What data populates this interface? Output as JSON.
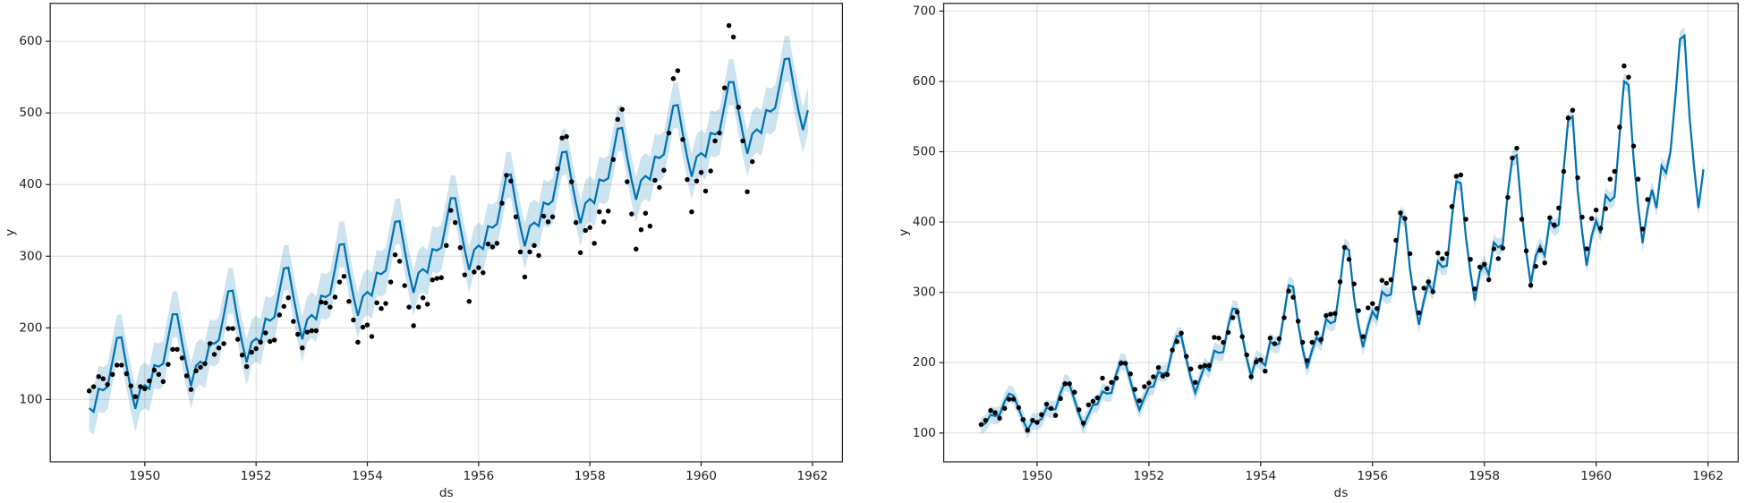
{
  "chart_data": [
    {
      "type": "line",
      "x_label": "ds",
      "y_label": "y",
      "grid": true,
      "xlim": [
        1948.3,
        1962.54
      ],
      "ylim": [
        13,
        653
      ],
      "xticks": [
        1950,
        1952,
        1954,
        1956,
        1958,
        1960,
        1962
      ],
      "yticks": [
        100,
        200,
        300,
        400,
        500,
        600
      ],
      "x": [
        1949.0,
        1949.08,
        1949.17,
        1949.25,
        1949.33,
        1949.42,
        1949.5,
        1949.58,
        1949.67,
        1949.75,
        1949.83,
        1949.92,
        1950.0,
        1950.08,
        1950.17,
        1950.25,
        1950.33,
        1950.42,
        1950.5,
        1950.58,
        1950.67,
        1950.75,
        1950.83,
        1950.92,
        1951.0,
        1951.08,
        1951.17,
        1951.25,
        1951.33,
        1951.42,
        1951.5,
        1951.58,
        1951.67,
        1951.75,
        1951.83,
        1951.92,
        1952.0,
        1952.08,
        1952.17,
        1952.25,
        1952.33,
        1952.42,
        1952.5,
        1952.58,
        1952.67,
        1952.75,
        1952.83,
        1952.92,
        1953.0,
        1953.08,
        1953.17,
        1953.25,
        1953.33,
        1953.42,
        1953.5,
        1953.58,
        1953.67,
        1953.75,
        1953.83,
        1953.92,
        1954.0,
        1954.08,
        1954.17,
        1954.25,
        1954.33,
        1954.42,
        1954.5,
        1954.58,
        1954.67,
        1954.75,
        1954.83,
        1954.92,
        1955.0,
        1955.08,
        1955.17,
        1955.25,
        1955.33,
        1955.42,
        1955.5,
        1955.58,
        1955.67,
        1955.75,
        1955.83,
        1955.92,
        1956.0,
        1956.08,
        1956.17,
        1956.25,
        1956.33,
        1956.42,
        1956.5,
        1956.58,
        1956.67,
        1956.75,
        1956.83,
        1956.92,
        1957.0,
        1957.08,
        1957.17,
        1957.25,
        1957.33,
        1957.42,
        1957.5,
        1957.58,
        1957.67,
        1957.75,
        1957.83,
        1957.92,
        1958.0,
        1958.08,
        1958.17,
        1958.25,
        1958.33,
        1958.42,
        1958.5,
        1958.58,
        1958.67,
        1958.75,
        1958.83,
        1958.92,
        1959.0,
        1959.08,
        1959.17,
        1959.25,
        1959.33,
        1959.42,
        1959.5,
        1959.58,
        1959.67,
        1959.75,
        1959.83,
        1959.92,
        1960.0,
        1960.08,
        1960.17,
        1960.25,
        1960.33,
        1960.42,
        1960.5,
        1960.58,
        1960.67,
        1960.75,
        1960.83,
        1960.92,
        1961.0,
        1961.08,
        1961.17,
        1961.25,
        1961.33,
        1961.42,
        1961.5,
        1961.58,
        1961.67,
        1961.75,
        1961.83,
        1961.92
      ],
      "points": {
        "color": "#000000",
        "values": [
          112,
          118,
          132,
          129,
          121,
          135,
          148,
          148,
          136,
          119,
          104,
          118,
          115,
          126,
          141,
          135,
          125,
          149,
          170,
          170,
          158,
          133,
          114,
          140,
          145,
          150,
          178,
          163,
          172,
          178,
          199,
          199,
          184,
          162,
          146,
          166,
          171,
          180,
          193,
          181,
          183,
          218,
          230,
          242,
          209,
          191,
          172,
          194,
          196,
          196,
          236,
          235,
          229,
          243,
          264,
          272,
          237,
          211,
          180,
          201,
          204,
          188,
          235,
          227,
          234,
          264,
          302,
          293,
          259,
          229,
          203,
          229,
          242,
          233,
          267,
          269,
          270,
          315,
          364,
          347,
          312,
          274,
          237,
          278,
          284,
          277,
          317,
          313,
          318,
          374,
          413,
          405,
          355,
          306,
          271,
          306,
          315,
          301,
          356,
          348,
          355,
          422,
          465,
          467,
          404,
          347,
          305,
          336,
          340,
          318,
          362,
          348,
          363,
          435,
          491,
          505,
          404,
          359,
          310,
          337,
          360,
          342,
          406,
          396,
          420,
          472,
          548,
          559,
          463,
          407,
          362,
          405,
          417,
          391,
          419,
          461,
          472,
          535,
          622,
          606,
          508,
          461,
          390,
          432,
          null,
          null,
          null,
          null,
          null,
          null,
          null,
          null,
          null,
          null,
          null,
          null
        ]
      },
      "forecast": {
        "color": "#0072B2",
        "values": [
          88,
          83,
          115,
          113,
          118,
          154,
          186,
          187,
          147,
          114,
          87,
          115,
          120,
          115,
          148,
          146,
          150,
          186,
          219,
          219,
          179,
          147,
          119,
          147,
          153,
          148,
          180,
          178,
          183,
          218,
          251,
          252,
          211,
          179,
          152,
          180,
          185,
          180,
          213,
          210,
          215,
          251,
          283,
          284,
          244,
          212,
          184,
          212,
          218,
          212,
          245,
          243,
          247,
          283,
          316,
          317,
          276,
          244,
          217,
          244,
          250,
          245,
          277,
          275,
          280,
          316,
          348,
          349,
          309,
          276,
          249,
          277,
          282,
          277,
          310,
          308,
          312,
          348,
          381,
          381,
          341,
          309,
          281,
          309,
          315,
          310,
          342,
          340,
          345,
          380,
          413,
          414,
          373,
          341,
          314,
          342,
          347,
          342,
          375,
          372,
          377,
          413,
          445,
          446,
          406,
          374,
          346,
          374,
          380,
          374,
          407,
          405,
          409,
          445,
          478,
          479,
          438,
          406,
          379,
          406,
          412,
          407,
          439,
          437,
          442,
          478,
          510,
          511,
          471,
          438,
          411,
          439,
          444,
          439,
          472,
          470,
          474,
          510,
          543,
          543,
          503,
          471,
          443,
          471,
          477,
          472,
          504,
          502,
          507,
          542,
          575,
          576,
          535,
          503,
          476,
          504
        ]
      },
      "uncertainty": 32
    },
    {
      "type": "line",
      "x_label": "ds",
      "y_label": "y",
      "grid": true,
      "xlim": [
        1948.33,
        1962.54
      ],
      "ylim": [
        59,
        711
      ],
      "xticks": [
        1950,
        1952,
        1954,
        1956,
        1958,
        1960,
        1962
      ],
      "yticks": [
        100,
        200,
        300,
        400,
        500,
        600,
        700
      ],
      "x": [
        1949.0,
        1949.08,
        1949.17,
        1949.25,
        1949.33,
        1949.42,
        1949.5,
        1949.58,
        1949.67,
        1949.75,
        1949.83,
        1949.92,
        1950.0,
        1950.08,
        1950.17,
        1950.25,
        1950.33,
        1950.42,
        1950.5,
        1950.58,
        1950.67,
        1950.75,
        1950.83,
        1950.92,
        1951.0,
        1951.08,
        1951.17,
        1951.25,
        1951.33,
        1951.42,
        1951.5,
        1951.58,
        1951.67,
        1951.75,
        1951.83,
        1951.92,
        1952.0,
        1952.08,
        1952.17,
        1952.25,
        1952.33,
        1952.42,
        1952.5,
        1952.58,
        1952.67,
        1952.75,
        1952.83,
        1952.92,
        1953.0,
        1953.08,
        1953.17,
        1953.25,
        1953.33,
        1953.42,
        1953.5,
        1953.58,
        1953.67,
        1953.75,
        1953.83,
        1953.92,
        1954.0,
        1954.08,
        1954.17,
        1954.25,
        1954.33,
        1954.42,
        1954.5,
        1954.58,
        1954.67,
        1954.75,
        1954.83,
        1954.92,
        1955.0,
        1955.08,
        1955.17,
        1955.25,
        1955.33,
        1955.42,
        1955.5,
        1955.58,
        1955.67,
        1955.75,
        1955.83,
        1955.92,
        1956.0,
        1956.08,
        1956.17,
        1956.25,
        1956.33,
        1956.42,
        1956.5,
        1956.58,
        1956.67,
        1956.75,
        1956.83,
        1956.92,
        1957.0,
        1957.08,
        1957.17,
        1957.25,
        1957.33,
        1957.42,
        1957.5,
        1957.58,
        1957.67,
        1957.75,
        1957.83,
        1957.92,
        1958.0,
        1958.08,
        1958.17,
        1958.25,
        1958.33,
        1958.42,
        1958.5,
        1958.58,
        1958.67,
        1958.75,
        1958.83,
        1958.92,
        1959.0,
        1959.08,
        1959.17,
        1959.25,
        1959.33,
        1959.42,
        1959.5,
        1959.58,
        1959.67,
        1959.75,
        1959.83,
        1959.92,
        1960.0,
        1960.08,
        1960.17,
        1960.25,
        1960.33,
        1960.42,
        1960.5,
        1960.58,
        1960.67,
        1960.75,
        1960.83,
        1960.92,
        1961.0,
        1961.08,
        1961.17,
        1961.25,
        1961.33,
        1961.42,
        1961.5,
        1961.58,
        1961.67,
        1961.75,
        1961.83,
        1961.92
      ],
      "points": {
        "color": "#000000",
        "values": [
          112,
          118,
          132,
          129,
          121,
          135,
          148,
          148,
          136,
          119,
          104,
          118,
          115,
          126,
          141,
          135,
          125,
          149,
          170,
          170,
          158,
          133,
          114,
          140,
          145,
          150,
          178,
          163,
          172,
          178,
          199,
          199,
          184,
          162,
          146,
          166,
          171,
          180,
          193,
          181,
          183,
          218,
          230,
          242,
          209,
          191,
          172,
          194,
          196,
          196,
          236,
          235,
          229,
          243,
          264,
          272,
          237,
          211,
          180,
          201,
          204,
          188,
          235,
          227,
          234,
          264,
          302,
          293,
          259,
          229,
          203,
          229,
          242,
          233,
          267,
          269,
          270,
          315,
          364,
          347,
          312,
          274,
          237,
          278,
          284,
          277,
          317,
          313,
          318,
          374,
          413,
          405,
          355,
          306,
          271,
          306,
          315,
          301,
          356,
          348,
          355,
          422,
          465,
          467,
          404,
          347,
          305,
          336,
          340,
          318,
          362,
          348,
          363,
          435,
          491,
          505,
          404,
          359,
          310,
          337,
          360,
          342,
          406,
          396,
          420,
          472,
          548,
          559,
          463,
          407,
          362,
          405,
          417,
          391,
          419,
          461,
          472,
          535,
          622,
          606,
          508,
          461,
          390,
          432,
          null,
          null,
          null,
          null,
          null,
          null,
          null,
          null,
          null,
          null,
          null,
          null
        ]
      },
      "forecast": {
        "color": "#0072B2",
        "values": [
          110,
          114,
          126,
          124,
          126,
          145,
          156,
          153,
          135,
          118,
          104,
          117,
          116,
          120,
          136,
          133,
          134,
          157,
          172,
          169,
          147,
          127,
          110,
          126,
          140,
          141,
          159,
          156,
          157,
          185,
          202,
          200,
          174,
          151,
          133,
          150,
          165,
          166,
          187,
          184,
          187,
          218,
          238,
          238,
          205,
          178,
          157,
          178,
          196,
          189,
          217,
          214,
          215,
          253,
          277,
          276,
          238,
          206,
          181,
          206,
          202,
          196,
          230,
          225,
          227,
          270,
          310,
          308,
          255,
          220,
          192,
          218,
          236,
          228,
          262,
          256,
          259,
          311,
          365,
          360,
          292,
          253,
          222,
          252,
          273,
          263,
          301,
          295,
          297,
          356,
          410,
          405,
          333,
          290,
          254,
          289,
          313,
          301,
          344,
          336,
          338,
          406,
          458,
          455,
          379,
          329,
          288,
          329,
          340,
          325,
          371,
          364,
          368,
          441,
          490,
          495,
          413,
          357,
          312,
          352,
          366,
          352,
          402,
          392,
          396,
          475,
          545,
          550,
          445,
          386,
          338,
          380,
          402,
          384,
          438,
          430,
          436,
          524,
          600,
          595,
          490,
          424,
          370,
          418,
          446,
          420,
          480,
          470,
          500,
          580,
          660,
          665,
          550,
          480,
          420,
          475
        ]
      },
      "uncertainty": 12
    }
  ]
}
